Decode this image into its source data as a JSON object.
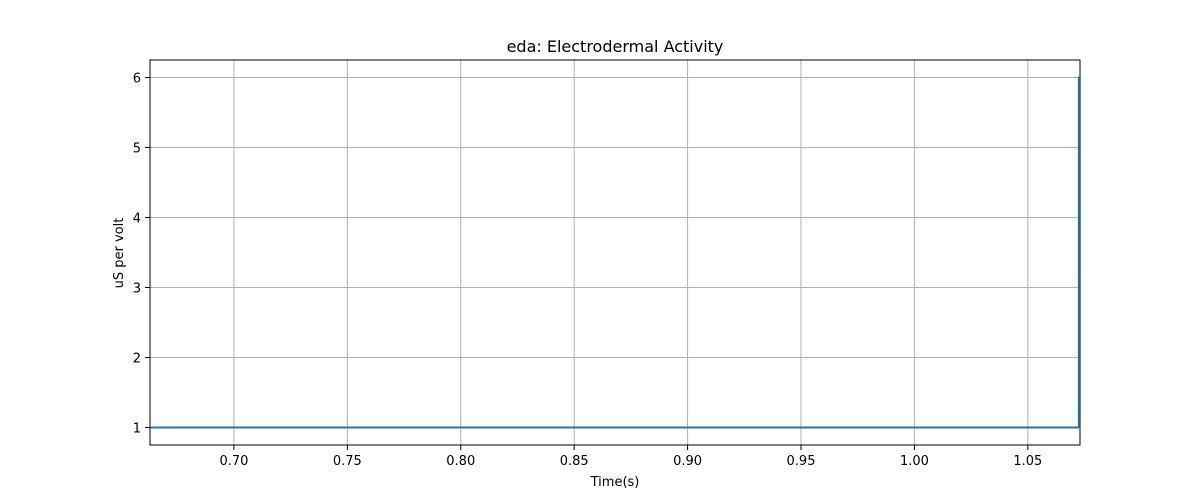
{
  "chart_data": {
    "type": "line",
    "title": "eda: Electrodermal Activity",
    "xlabel": "Time(s)",
    "ylabel": "uS per volt",
    "xlim": [
      0.663,
      1.073
    ],
    "ylim": [
      0.75,
      6.25
    ],
    "xticks": [
      0.7,
      0.75,
      0.8,
      0.85,
      0.9,
      0.95,
      1.0,
      1.05
    ],
    "xtick_labels": [
      "0.70",
      "0.75",
      "0.80",
      "0.85",
      "0.90",
      "0.95",
      "1.00",
      "1.05"
    ],
    "yticks": [
      1,
      2,
      3,
      4,
      5,
      6
    ],
    "ytick_labels": [
      "1",
      "2",
      "3",
      "4",
      "5",
      "6"
    ],
    "grid": true,
    "series": [
      {
        "color": "#1f77b4",
        "x": [
          0.663,
          1.0725,
          1.0725,
          1.073
        ],
        "y": [
          1,
          1,
          6,
          6
        ]
      }
    ]
  }
}
